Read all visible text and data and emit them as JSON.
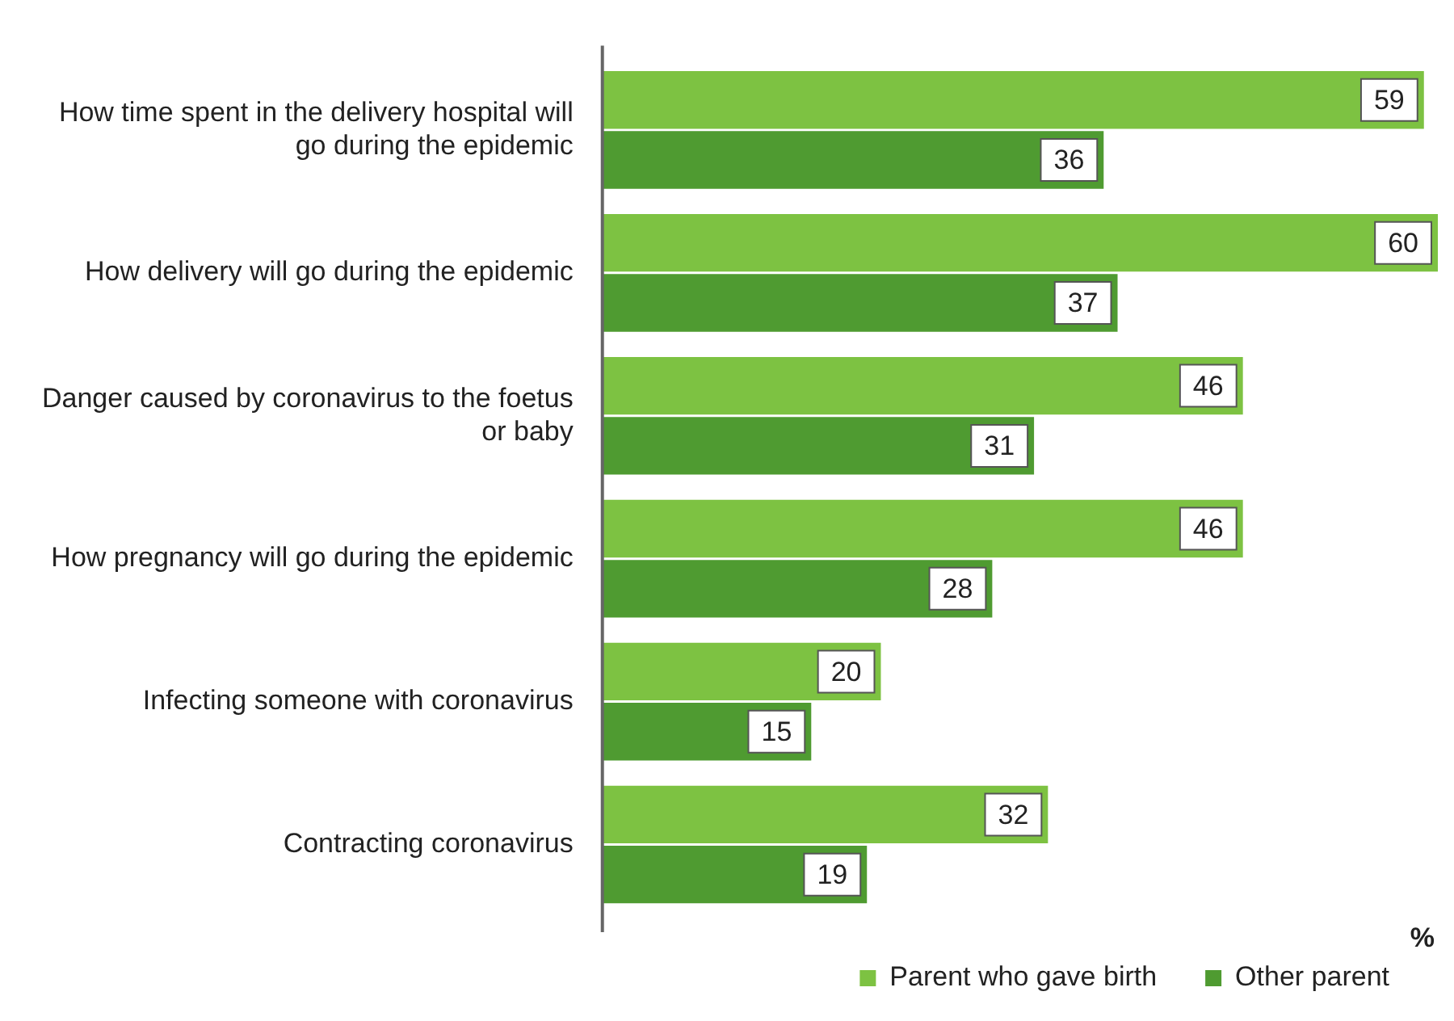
{
  "chart_data": {
    "type": "bar",
    "orientation": "horizontal",
    "xlabel": "%",
    "categories": [
      "How time spent in the delivery hospital will go during the epidemic",
      "How delivery will go during the epidemic",
      "Danger caused by coronavirus to the foetus or baby",
      "How pregnancy will go during the epidemic",
      "Infecting someone with coronavirus",
      "Contracting coronavirus"
    ],
    "series": [
      {
        "name": "Parent who gave birth",
        "color": "#7dc242",
        "values": [
          59,
          60,
          46,
          46,
          20,
          32
        ]
      },
      {
        "name": "Other parent",
        "color": "#4f9b31",
        "values": [
          36,
          37,
          31,
          28,
          15,
          19
        ]
      }
    ],
    "data_labels": true,
    "legend": "bottom"
  }
}
